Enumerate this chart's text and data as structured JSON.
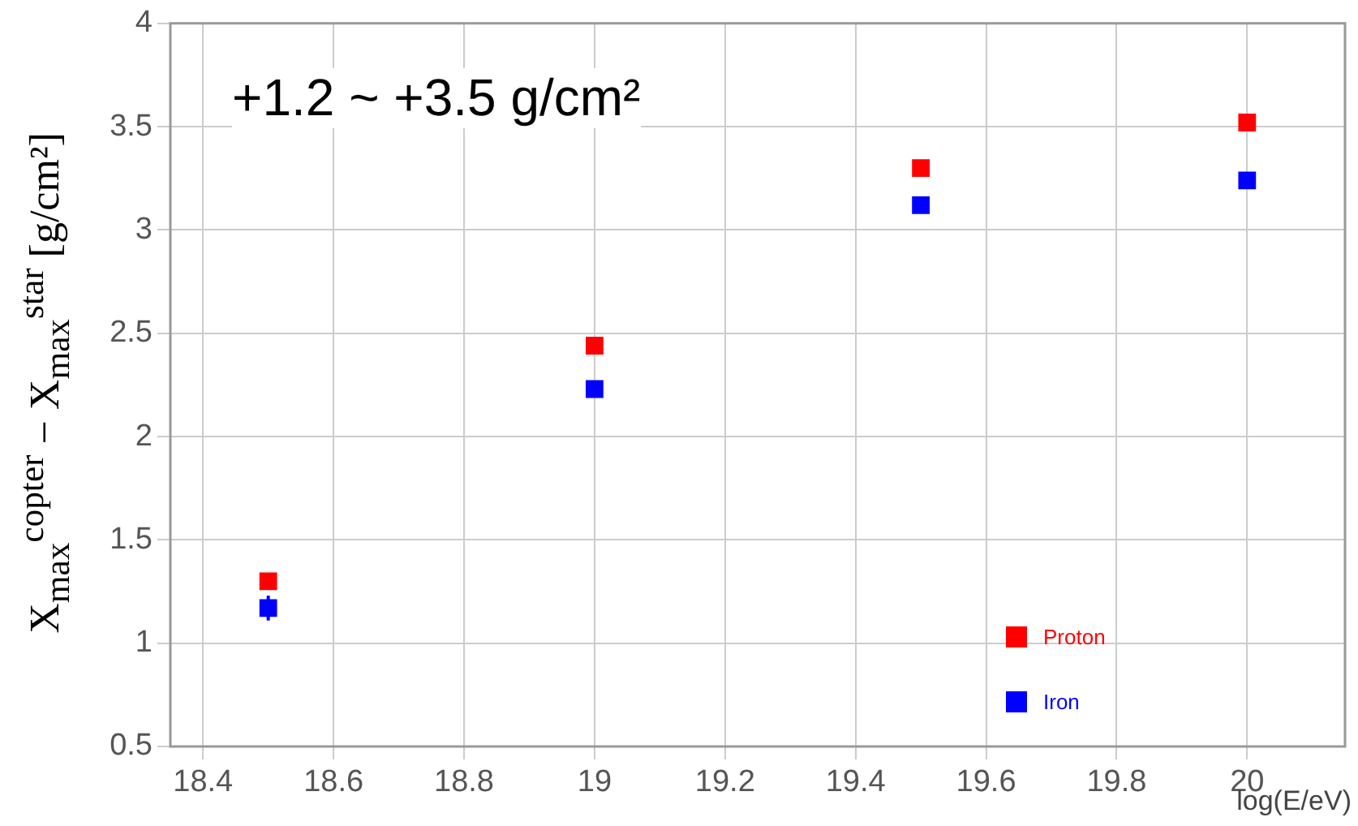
{
  "chart_data": {
    "type": "scatter",
    "xlabel": "log(E/eV)",
    "ylabel": "X$_{max}$$^{copter}$ − X$_{max}$$^{star}$ [g/cm²]",
    "annotations": [
      "+1.2 ~ +3.5 g/cm²"
    ],
    "x": [
      18.5,
      19,
      19.5,
      20
    ],
    "series": [
      {
        "name": "Proton",
        "color": "#ff0000",
        "values": [
          1.3,
          2.44,
          3.3,
          3.52
        ],
        "errors": [
          0.04,
          null,
          null,
          null
        ]
      },
      {
        "name": "Iron",
        "color": "#0000ff",
        "values": [
          1.17,
          2.23,
          3.12,
          3.24
        ],
        "errors": [
          0.06,
          null,
          null,
          null
        ]
      }
    ],
    "xlim": [
      18.35,
      20.15
    ],
    "xticks": [
      18.4,
      18.6,
      18.8,
      19,
      19.2,
      19.4,
      19.6,
      19.8,
      20
    ],
    "ylim": [
      0.5,
      4
    ],
    "yticks": [
      0.5,
      1,
      1.5,
      2,
      2.5,
      3,
      3.5,
      4
    ],
    "grid": true,
    "legend": "bottom right",
    "marker": "square"
  }
}
